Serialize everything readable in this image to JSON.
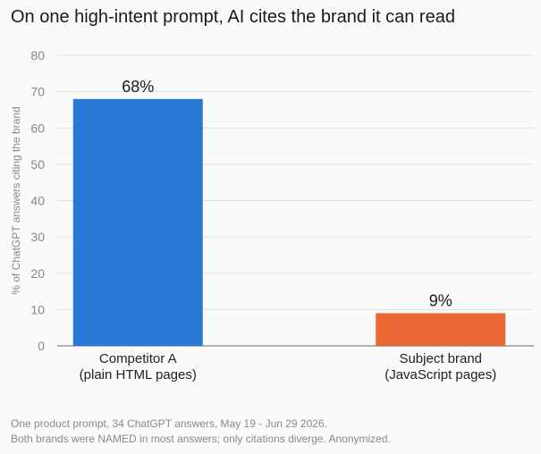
{
  "chart_data": {
    "type": "bar",
    "title": "On one high-intent prompt, AI cites the brand it can read",
    "ylabel": "% of ChatGPT answers citing the brand",
    "xlabel": "",
    "ylim": [
      0,
      80
    ],
    "yticks": [
      0,
      10,
      20,
      30,
      40,
      50,
      60,
      70,
      80
    ],
    "grid": true,
    "bars": [
      {
        "label_line1": "Competitor A",
        "label_line2": "(plain HTML pages)",
        "value": 68,
        "value_label": "68%",
        "color": "#2a78d6"
      },
      {
        "label_line1": "Subject brand",
        "label_line2": "(JavaScript pages)",
        "value": 9,
        "value_label": "9%",
        "color": "#eb6834"
      }
    ]
  },
  "notes": {
    "line1": "One product prompt, 34 ChatGPT answers, May 19 - Jun 29 2026.",
    "line2": "Both brands were NAMED in most answers; only citations diverge. Anonymized."
  }
}
